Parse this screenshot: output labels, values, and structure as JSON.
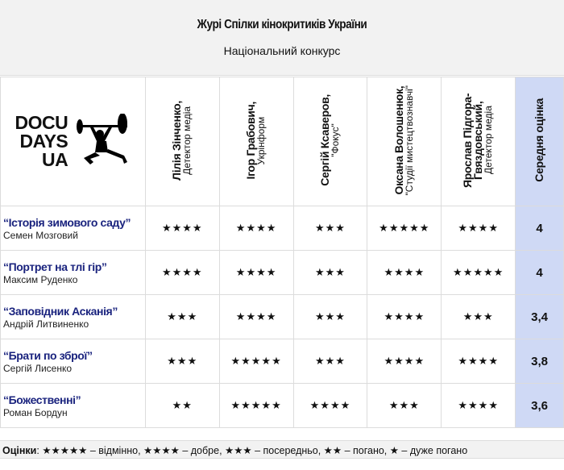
{
  "header": {
    "title": "Журі Спілки кінокритиків України",
    "subtitle": "Національний конкурс"
  },
  "logo": {
    "lines": [
      "DOCU",
      "DAYS",
      "UA"
    ]
  },
  "jurors": [
    {
      "name": "Лілія Зінченко,",
      "org": "Детектор медіа"
    },
    {
      "name": "Ігор Грабович,",
      "org": "Укрінформ"
    },
    {
      "name": "Сергій Ксаверов,",
      "org": "\"Фокус\""
    },
    {
      "name": "Оксана Волошенюк,",
      "org": "\"Студії мистецтвознавчі\""
    },
    {
      "name": "Ярослав Підгора-Гвяздовський,",
      "org": "Детектор медіа"
    }
  ],
  "avg_header": "Середня оцінка",
  "colors": {
    "accent": "#cfd9f5",
    "title": "#1a237e"
  },
  "films": [
    {
      "title": "“Історія зимового саду”",
      "director": "Семен Мозговий",
      "ratings": [
        "★★★★",
        "★★★★",
        "★★★",
        "★★★★★",
        "★★★★"
      ],
      "avg": "4"
    },
    {
      "title": "“Портрет на тлі гір”",
      "director": "Максим Руденко",
      "ratings": [
        "★★★★",
        "★★★★",
        "★★★",
        "★★★★",
        "★★★★★"
      ],
      "avg": "4"
    },
    {
      "title": "“Заповідник Асканія”",
      "director": "Андрій Литвиненко",
      "ratings": [
        "★★★",
        "★★★★",
        "★★★",
        "★★★★",
        "★★★"
      ],
      "avg": "3,4"
    },
    {
      "title": "“Брати по зброї”",
      "director": "Сергій Лисенко",
      "ratings": [
        "★★★",
        "★★★★★",
        "★★★",
        "★★★★",
        "★★★★"
      ],
      "avg": "3,8"
    },
    {
      "title": "“Божественні”",
      "director": "Роман Бордун",
      "ratings": [
        "★★",
        "★★★★★",
        "★★★★",
        "★★★",
        "★★★★"
      ],
      "avg": "3,6"
    }
  ],
  "legend": {
    "label": "Оцінки",
    "text": ": ★★★★★ – відмінно, ★★★★ – добре, ★★★ – посередньо, ★★ – погано, ★ – дуже погано"
  }
}
